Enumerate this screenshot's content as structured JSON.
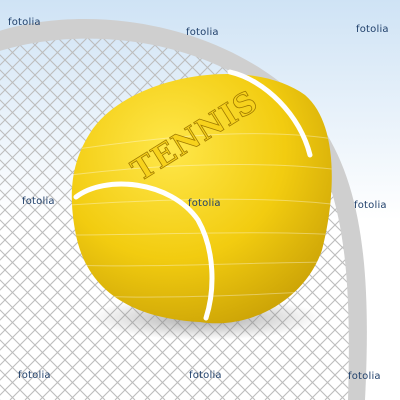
{
  "image": {
    "subject": "tennis ball resting on a racket string bed",
    "ball_text": "TENNIS",
    "watermarks": [
      "fotolia",
      "fotolia",
      "fotolia",
      "fotolia",
      "fotolia",
      "fotolia",
      "fotolia",
      "fotolia",
      "fotolia"
    ],
    "colors": {
      "sky_top": "#cfe3f5",
      "sky_bottom": "#ffffff",
      "racket_frame": "#cfcfcf",
      "strings": "#bdbdbd",
      "ball_light": "#ffe74a",
      "ball_mid": "#f2cc10",
      "ball_dark": "#c79e05",
      "seam": "#ffffff",
      "text_color": "#f7d21c",
      "watermark": "#1f3f6a"
    }
  }
}
